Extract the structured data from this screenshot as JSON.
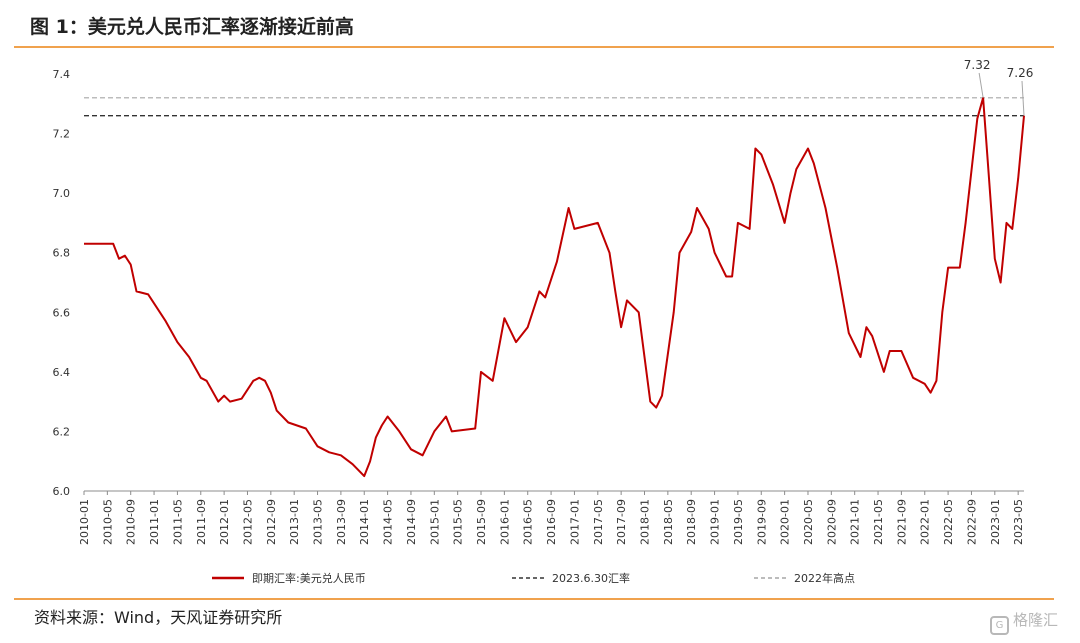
{
  "header": {
    "title": "图 1：美元兑人民币汇率逐渐接近前高"
  },
  "footer": {
    "source": "资料来源：Wind，天风证券研究所",
    "watermark": "格隆汇",
    "watermark_icon": "G"
  },
  "chart_data": {
    "type": "line",
    "ylim": [
      6.0,
      7.4
    ],
    "yticks": [
      "6.0",
      "6.2",
      "6.4",
      "6.6",
      "6.8",
      "7.0",
      "7.2",
      "7.4"
    ],
    "xticks": [
      "2010-01",
      "2010-05",
      "2010-09",
      "2011-01",
      "2011-05",
      "2011-09",
      "2012-01",
      "2012-05",
      "2012-09",
      "2013-01",
      "2013-05",
      "2013-09",
      "2014-01",
      "2014-05",
      "2014-09",
      "2015-01",
      "2015-05",
      "2015-09",
      "2016-01",
      "2016-05",
      "2016-09",
      "2017-01",
      "2017-05",
      "2017-09",
      "2018-01",
      "2018-05",
      "2018-09",
      "2019-01",
      "2019-05",
      "2019-09",
      "2020-01",
      "2020-05",
      "2020-09",
      "2021-01",
      "2021-05",
      "2021-09",
      "2022-01",
      "2022-05",
      "2022-09",
      "2023-01",
      "2023-05"
    ],
    "grid": false,
    "legend_position": "bottom",
    "series": [
      {
        "name": "即期汇率:美元兑人民币",
        "color": "#c00000",
        "style": "solid",
        "points": [
          [
            "2010-01",
            6.83
          ],
          [
            "2010-04",
            6.83
          ],
          [
            "2010-06",
            6.83
          ],
          [
            "2010-07",
            6.78
          ],
          [
            "2010-08",
            6.79
          ],
          [
            "2010-09",
            6.76
          ],
          [
            "2010-10",
            6.67
          ],
          [
            "2010-12",
            6.66
          ],
          [
            "2011-01",
            6.63
          ],
          [
            "2011-03",
            6.57
          ],
          [
            "2011-05",
            6.5
          ],
          [
            "2011-07",
            6.45
          ],
          [
            "2011-09",
            6.38
          ],
          [
            "2011-10",
            6.37
          ],
          [
            "2011-12",
            6.3
          ],
          [
            "2012-01",
            6.32
          ],
          [
            "2012-02",
            6.3
          ],
          [
            "2012-04",
            6.31
          ],
          [
            "2012-06",
            6.37
          ],
          [
            "2012-07",
            6.38
          ],
          [
            "2012-08",
            6.37
          ],
          [
            "2012-09",
            6.33
          ],
          [
            "2012-10",
            6.27
          ],
          [
            "2012-12",
            6.23
          ],
          [
            "2013-03",
            6.21
          ],
          [
            "2013-05",
            6.15
          ],
          [
            "2013-07",
            6.13
          ],
          [
            "2013-09",
            6.12
          ],
          [
            "2013-11",
            6.09
          ],
          [
            "2014-01",
            6.05
          ],
          [
            "2014-02",
            6.1
          ],
          [
            "2014-03",
            6.18
          ],
          [
            "2014-04",
            6.22
          ],
          [
            "2014-05",
            6.25
          ],
          [
            "2014-07",
            6.2
          ],
          [
            "2014-09",
            6.14
          ],
          [
            "2014-11",
            6.12
          ],
          [
            "2015-01",
            6.2
          ],
          [
            "2015-03",
            6.25
          ],
          [
            "2015-04",
            6.2
          ],
          [
            "2015-08",
            6.21
          ],
          [
            "2015-09",
            6.4
          ],
          [
            "2015-11",
            6.37
          ],
          [
            "2016-01",
            6.58
          ],
          [
            "2016-03",
            6.5
          ],
          [
            "2016-05",
            6.55
          ],
          [
            "2016-07",
            6.67
          ],
          [
            "2016-08",
            6.65
          ],
          [
            "2016-10",
            6.77
          ],
          [
            "2016-12",
            6.95
          ],
          [
            "2017-01",
            6.88
          ],
          [
            "2017-03",
            6.89
          ],
          [
            "2017-05",
            6.9
          ],
          [
            "2017-07",
            6.8
          ],
          [
            "2017-08",
            6.67
          ],
          [
            "2017-09",
            6.55
          ],
          [
            "2017-10",
            6.64
          ],
          [
            "2017-12",
            6.6
          ],
          [
            "2018-01",
            6.45
          ],
          [
            "2018-02",
            6.3
          ],
          [
            "2018-03",
            6.28
          ],
          [
            "2018-04",
            6.32
          ],
          [
            "2018-06",
            6.6
          ],
          [
            "2018-07",
            6.8
          ],
          [
            "2018-09",
            6.87
          ],
          [
            "2018-10",
            6.95
          ],
          [
            "2018-12",
            6.88
          ],
          [
            "2019-01",
            6.8
          ],
          [
            "2019-03",
            6.72
          ],
          [
            "2019-04",
            6.72
          ],
          [
            "2019-05",
            6.9
          ],
          [
            "2019-07",
            6.88
          ],
          [
            "2019-08",
            7.15
          ],
          [
            "2019-09",
            7.13
          ],
          [
            "2019-11",
            7.03
          ],
          [
            "2020-01",
            6.9
          ],
          [
            "2020-02",
            7.0
          ],
          [
            "2020-03",
            7.08
          ],
          [
            "2020-05",
            7.15
          ],
          [
            "2020-06",
            7.1
          ],
          [
            "2020-08",
            6.95
          ],
          [
            "2020-10",
            6.75
          ],
          [
            "2020-12",
            6.53
          ],
          [
            "2021-02",
            6.45
          ],
          [
            "2021-03",
            6.55
          ],
          [
            "2021-04",
            6.52
          ],
          [
            "2021-06",
            6.4
          ],
          [
            "2021-07",
            6.47
          ],
          [
            "2021-09",
            6.47
          ],
          [
            "2021-11",
            6.38
          ],
          [
            "2022-01",
            6.36
          ],
          [
            "2022-02",
            6.33
          ],
          [
            "2022-03",
            6.37
          ],
          [
            "2022-04",
            6.6
          ],
          [
            "2022-05",
            6.75
          ],
          [
            "2022-07",
            6.75
          ],
          [
            "2022-08",
            6.9
          ],
          [
            "2022-10",
            7.25
          ],
          [
            "2022-11",
            7.32
          ],
          [
            "2022-12",
            7.05
          ],
          [
            "2023-01",
            6.78
          ],
          [
            "2023-02",
            6.7
          ],
          [
            "2023-03",
            6.9
          ],
          [
            "2023-04",
            6.88
          ],
          [
            "2023-05",
            7.05
          ],
          [
            "2023-06",
            7.26
          ]
        ]
      },
      {
        "name": "2023.6.30汇率",
        "color": "#333333",
        "style": "dashed",
        "value": 7.26,
        "label": "7.26"
      },
      {
        "name": "2022年高点",
        "color": "#a6a6a6",
        "style": "dashed",
        "value": 7.32,
        "label": "7.32"
      }
    ]
  }
}
